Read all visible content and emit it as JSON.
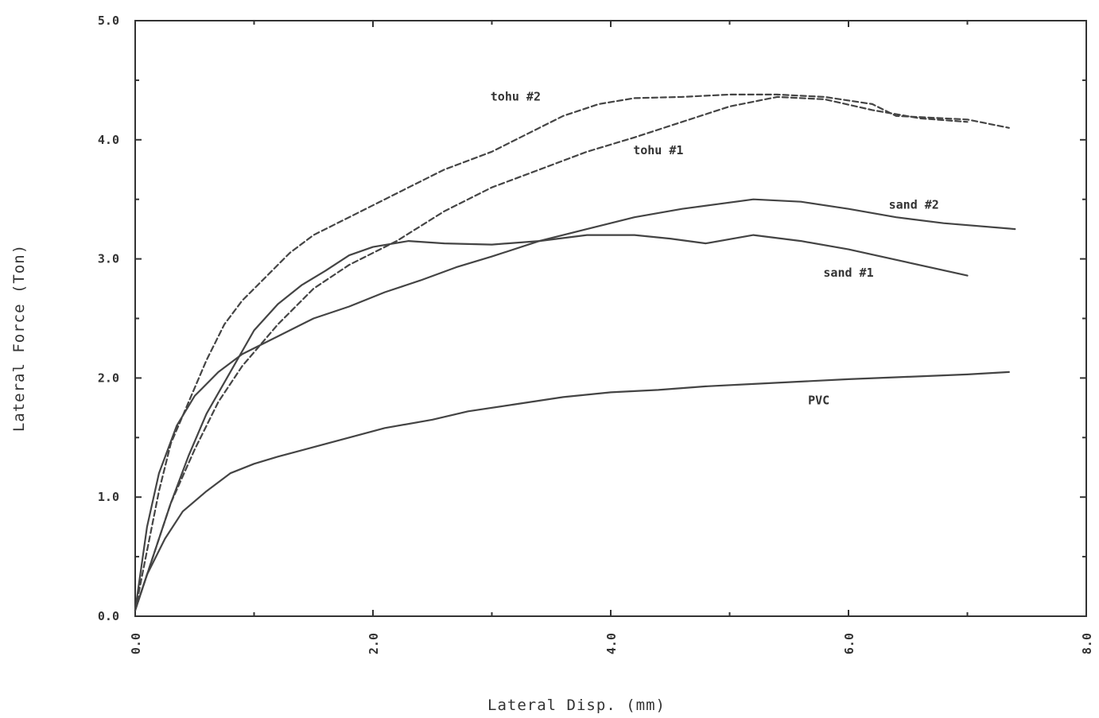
{
  "chart_data": {
    "type": "line",
    "xlabel": "Lateral Disp.  (mm)",
    "ylabel": "Lateral Force (Ton)",
    "xlim": [
      0,
      8
    ],
    "ylim": [
      0,
      5
    ],
    "x_ticks": [
      "0.0",
      "2.0",
      "4.0",
      "6.0",
      "8.0"
    ],
    "y_ticks": [
      "0.0",
      "1.0",
      "2.0",
      "3.0",
      "4.0",
      "5.0"
    ],
    "grid": false,
    "line_color": "#444444",
    "series": [
      {
        "name": "tohu #2",
        "style": "dashed",
        "points": [
          [
            0,
            0.05
          ],
          [
            0.1,
            0.55
          ],
          [
            0.2,
            1.05
          ],
          [
            0.3,
            1.45
          ],
          [
            0.45,
            1.8
          ],
          [
            0.6,
            2.15
          ],
          [
            0.75,
            2.45
          ],
          [
            0.9,
            2.65
          ],
          [
            1.1,
            2.85
          ],
          [
            1.3,
            3.05
          ],
          [
            1.5,
            3.2
          ],
          [
            1.7,
            3.3
          ],
          [
            2.0,
            3.45
          ],
          [
            2.3,
            3.6
          ],
          [
            2.6,
            3.75
          ],
          [
            3.0,
            3.9
          ],
          [
            3.3,
            4.05
          ],
          [
            3.6,
            4.2
          ],
          [
            3.9,
            4.3
          ],
          [
            4.2,
            4.35
          ],
          [
            4.6,
            4.36
          ],
          [
            5.0,
            4.38
          ],
          [
            5.4,
            4.38
          ],
          [
            5.8,
            4.36
          ],
          [
            6.2,
            4.3
          ],
          [
            6.4,
            4.2
          ],
          [
            6.8,
            4.18
          ],
          [
            7.0,
            4.17
          ],
          [
            7.35,
            4.1
          ]
        ]
      },
      {
        "name": "tohu #1",
        "style": "dashed",
        "points": [
          [
            0,
            0.05
          ],
          [
            0.15,
            0.5
          ],
          [
            0.3,
            0.95
          ],
          [
            0.5,
            1.4
          ],
          [
            0.7,
            1.8
          ],
          [
            0.9,
            2.1
          ],
          [
            1.2,
            2.45
          ],
          [
            1.5,
            2.75
          ],
          [
            1.8,
            2.95
          ],
          [
            2.2,
            3.15
          ],
          [
            2.6,
            3.4
          ],
          [
            3.0,
            3.6
          ],
          [
            3.4,
            3.75
          ],
          [
            3.8,
            3.9
          ],
          [
            4.2,
            4.02
          ],
          [
            4.6,
            4.15
          ],
          [
            5.0,
            4.28
          ],
          [
            5.4,
            4.36
          ],
          [
            5.8,
            4.34
          ],
          [
            6.2,
            4.25
          ],
          [
            6.6,
            4.18
          ],
          [
            7.0,
            4.15
          ]
        ]
      },
      {
        "name": "sand #2",
        "style": "solid",
        "points": [
          [
            0,
            0.05
          ],
          [
            0.1,
            0.75
          ],
          [
            0.2,
            1.2
          ],
          [
            0.35,
            1.6
          ],
          [
            0.5,
            1.85
          ],
          [
            0.7,
            2.05
          ],
          [
            0.9,
            2.2
          ],
          [
            1.2,
            2.35
          ],
          [
            1.5,
            2.5
          ],
          [
            1.8,
            2.6
          ],
          [
            2.1,
            2.72
          ],
          [
            2.4,
            2.82
          ],
          [
            2.7,
            2.93
          ],
          [
            3.0,
            3.02
          ],
          [
            3.4,
            3.15
          ],
          [
            3.8,
            3.25
          ],
          [
            4.2,
            3.35
          ],
          [
            4.6,
            3.42
          ],
          [
            4.9,
            3.46
          ],
          [
            5.2,
            3.5
          ],
          [
            5.6,
            3.48
          ],
          [
            6.0,
            3.42
          ],
          [
            6.4,
            3.35
          ],
          [
            6.8,
            3.3
          ],
          [
            7.4,
            3.25
          ]
        ]
      },
      {
        "name": "sand #1",
        "style": "solid",
        "points": [
          [
            0,
            0.05
          ],
          [
            0.15,
            0.5
          ],
          [
            0.3,
            0.95
          ],
          [
            0.45,
            1.35
          ],
          [
            0.6,
            1.7
          ],
          [
            0.8,
            2.05
          ],
          [
            1.0,
            2.4
          ],
          [
            1.2,
            2.62
          ],
          [
            1.4,
            2.78
          ],
          [
            1.6,
            2.9
          ],
          [
            1.8,
            3.03
          ],
          [
            2.0,
            3.1
          ],
          [
            2.3,
            3.15
          ],
          [
            2.6,
            3.13
          ],
          [
            3.0,
            3.12
          ],
          [
            3.4,
            3.15
          ],
          [
            3.8,
            3.2
          ],
          [
            4.2,
            3.2
          ],
          [
            4.5,
            3.17
          ],
          [
            4.8,
            3.13
          ],
          [
            5.2,
            3.2
          ],
          [
            5.6,
            3.15
          ],
          [
            6.0,
            3.08
          ],
          [
            6.5,
            2.97
          ],
          [
            7.0,
            2.86
          ]
        ]
      },
      {
        "name": "PVC",
        "style": "solid",
        "points": [
          [
            0,
            0.05
          ],
          [
            0.1,
            0.35
          ],
          [
            0.25,
            0.65
          ],
          [
            0.4,
            0.88
          ],
          [
            0.6,
            1.05
          ],
          [
            0.8,
            1.2
          ],
          [
            1.0,
            1.28
          ],
          [
            1.2,
            1.34
          ],
          [
            1.5,
            1.42
          ],
          [
            1.8,
            1.5
          ],
          [
            2.1,
            1.58
          ],
          [
            2.5,
            1.65
          ],
          [
            2.8,
            1.72
          ],
          [
            3.2,
            1.78
          ],
          [
            3.6,
            1.84
          ],
          [
            4.0,
            1.88
          ],
          [
            4.4,
            1.9
          ],
          [
            4.8,
            1.93
          ],
          [
            5.2,
            1.95
          ],
          [
            5.6,
            1.97
          ],
          [
            6.0,
            1.99
          ],
          [
            6.5,
            2.01
          ],
          [
            7.0,
            2.03
          ],
          [
            7.35,
            2.05
          ]
        ]
      }
    ],
    "annotations": [
      {
        "text": "tohu #2",
        "x": 3.2,
        "y": 4.33
      },
      {
        "text": "tohu #1",
        "x": 4.4,
        "y": 3.88
      },
      {
        "text": "sand #2",
        "x": 6.55,
        "y": 3.42
      },
      {
        "text": "sand #1",
        "x": 6.0,
        "y": 2.85
      },
      {
        "text": "PVC",
        "x": 5.75,
        "y": 1.78
      }
    ]
  }
}
